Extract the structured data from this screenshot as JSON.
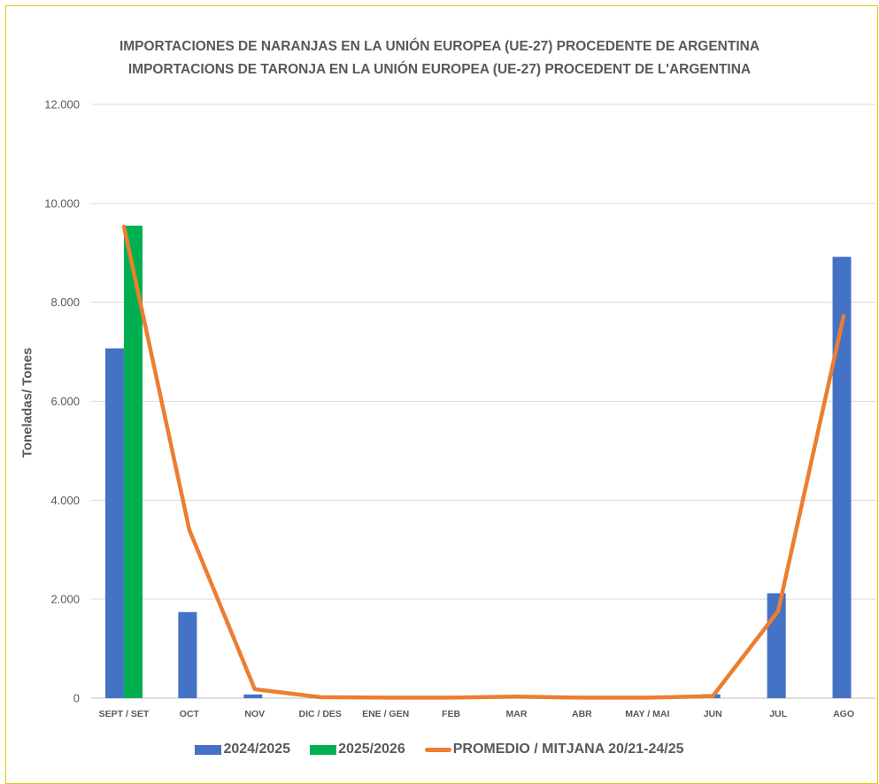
{
  "chart_data": {
    "type": "bar",
    "title": "IMPORTACIONES DE NARANJAS EN LA UNIÓN EUROPEA (UE-27) PROCEDENTE DE ARGENTINA",
    "subtitle": "IMPORTACIONS DE TARONJA EN LA UNIÓN EUROPEA (UE-27) PROCEDENT DE L'ARGENTINA",
    "xlabel": "",
    "ylabel": "Toneladas/ Tones",
    "ylim": [
      0,
      12000
    ],
    "y_ticks": [
      0,
      2000,
      4000,
      6000,
      8000,
      10000,
      12000
    ],
    "y_tick_labels": [
      "0",
      "2.000",
      "4.000",
      "6.000",
      "8.000",
      "10.000",
      "12.000"
    ],
    "grid": true,
    "legend_position": "bottom",
    "categories": [
      "SEPT / SET",
      "OCT",
      "NOV",
      "DIC / DES",
      "ENE / GEN",
      "FEB",
      "MAR",
      "ABR",
      "MAY / MAI",
      "JUN",
      "JUL",
      "AGO"
    ],
    "series": [
      {
        "name": "2024/2025",
        "type": "bar",
        "color": "#4472C4",
        "values": [
          7070,
          1740,
          75,
          0,
          0,
          0,
          0,
          0,
          0,
          80,
          2120,
          8920
        ]
      },
      {
        "name": "2025/2026",
        "type": "bar",
        "color": "#00B050",
        "values": [
          9550,
          null,
          null,
          null,
          null,
          null,
          null,
          null,
          null,
          null,
          null,
          null
        ]
      },
      {
        "name": "PROMEDIO / MITJANA  20/21-24/25",
        "type": "line",
        "color": "#ED7D31",
        "values": [
          9530,
          3400,
          180,
          20,
          10,
          10,
          30,
          10,
          10,
          40,
          1760,
          7720
        ]
      }
    ]
  }
}
